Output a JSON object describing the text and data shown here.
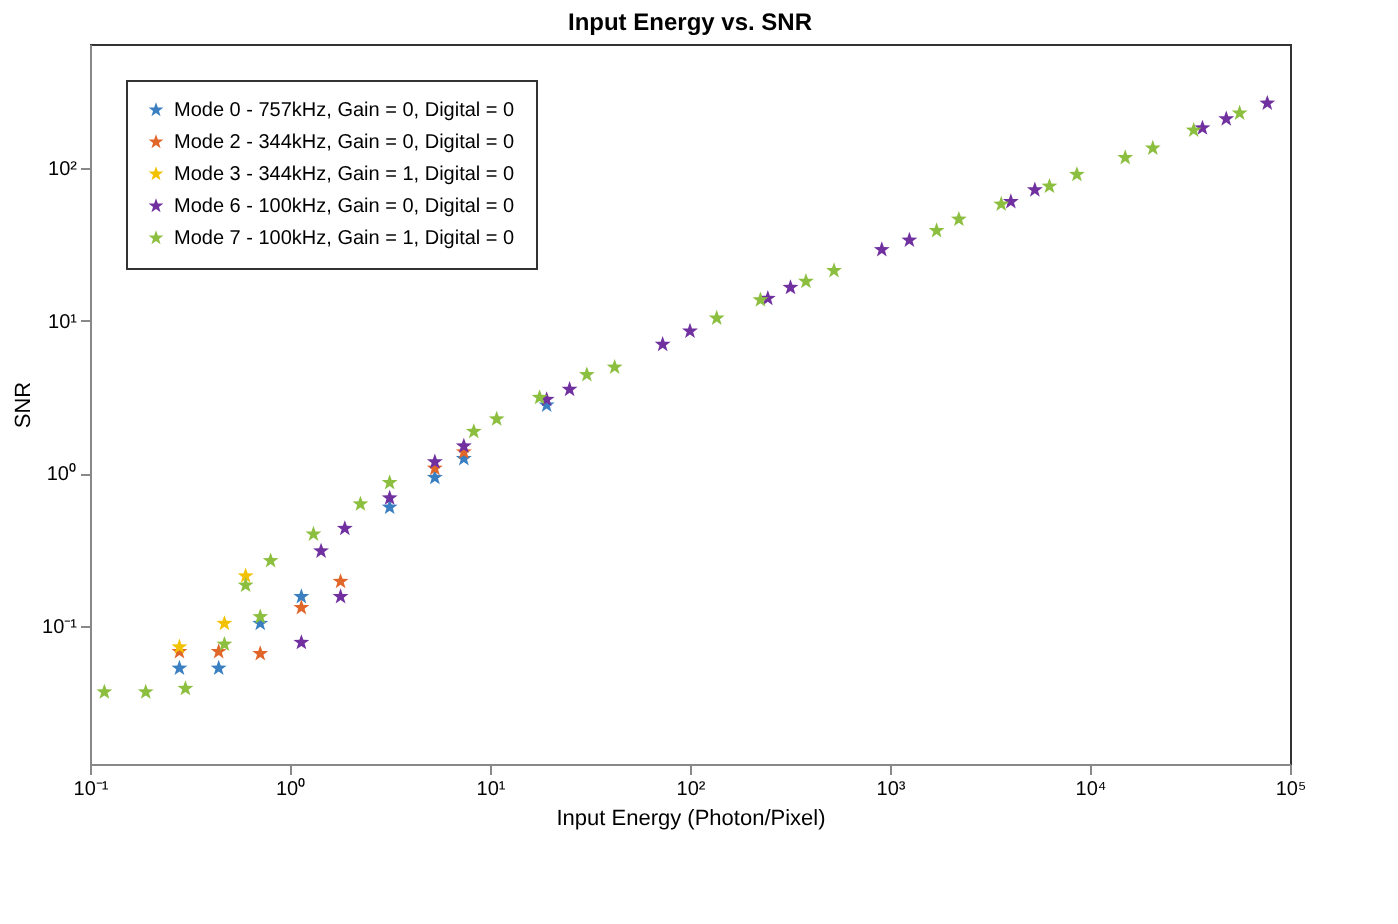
{
  "chart_data": {
    "type": "scatter",
    "title": "Input Energy vs. SNR",
    "xlabel": "Input Energy (Photon/Pixel)",
    "ylabel": "SNR",
    "log": "xy",
    "grid": false,
    "legend": "top left",
    "marker": "star",
    "xlim": [
      0.1,
      100000
    ],
    "ylim": [
      0.0125,
      650
    ],
    "xticks": [
      {
        "value": 0.1,
        "label": "10⁻¹"
      },
      {
        "value": 1,
        "label": "10⁰"
      },
      {
        "value": 10,
        "label": "10¹"
      },
      {
        "value": 100,
        "label": "10²"
      },
      {
        "value": 1000,
        "label": "10³"
      },
      {
        "value": 10000,
        "label": "10⁴"
      },
      {
        "value": 100000,
        "label": "10⁵"
      }
    ],
    "yticks": [
      {
        "value": 0.1,
        "label": "10⁻¹"
      },
      {
        "value": 1,
        "label": "10⁰"
      },
      {
        "value": 10,
        "label": "10¹"
      },
      {
        "value": 100,
        "label": "10²"
      }
    ],
    "series": [
      {
        "name": "Mode 0 - 757kHz, Gain = 0, Digital = 0",
        "color": "#3a7fc1",
        "x": [
          0.28,
          0.44,
          0.71,
          1.14,
          3.15,
          5.3,
          7.4,
          19.2
        ],
        "values": [
          0.053,
          0.053,
          0.104,
          0.156,
          0.6,
          0.94,
          1.25,
          2.8
        ]
      },
      {
        "name": "Mode 2 - 344kHz, Gain = 0, Digital = 0",
        "color": "#e0662a",
        "x": [
          0.28,
          0.44,
          0.71,
          1.14,
          1.79,
          5.3,
          7.4
        ],
        "values": [
          0.068,
          0.068,
          0.066,
          0.132,
          0.196,
          1.08,
          1.38
        ]
      },
      {
        "name": "Mode 3 - 344kHz, Gain = 1, Digital = 0",
        "color": "#f2c200",
        "x": [
          0.28,
          0.47,
          0.6
        ],
        "values": [
          0.073,
          0.104,
          0.213
        ]
      },
      {
        "name": "Mode 6 - 100kHz, Gain = 0, Digital = 0",
        "color": "#7030a0",
        "x": [
          1.14,
          1.43,
          1.79,
          1.88,
          3.15,
          5.3,
          7.4,
          19.2,
          25,
          73,
          100,
          245,
          318,
          910,
          1250,
          4020,
          5300,
          36500,
          48000,
          77000
        ],
        "values": [
          0.078,
          0.31,
          0.156,
          0.436,
          0.69,
          1.19,
          1.51,
          3.05,
          3.55,
          7.0,
          8.55,
          14.0,
          16.5,
          29.2,
          33.7,
          60.3,
          72,
          183,
          210,
          266
        ]
      },
      {
        "name": "Mode 7 - 100kHz, Gain = 1, Digital = 0",
        "color": "#8cbf3f",
        "x": [
          0.118,
          0.19,
          0.3,
          0.47,
          0.71,
          0.6,
          0.8,
          1.31,
          2.25,
          3.15,
          8.3,
          10.8,
          17.7,
          30.5,
          42,
          136,
          225,
          380,
          525,
          1710,
          2210,
          3600,
          6270,
          8600,
          15000,
          20600,
          33000,
          56000
        ],
        "values": [
          0.037,
          0.037,
          0.039,
          0.076,
          0.115,
          0.185,
          0.268,
          0.4,
          0.63,
          0.87,
          1.88,
          2.27,
          3.14,
          4.43,
          4.96,
          10.4,
          13.7,
          18.1,
          21.3,
          38.9,
          46.2,
          58,
          76,
          90.7,
          117,
          135,
          177,
          229
        ]
      }
    ]
  }
}
